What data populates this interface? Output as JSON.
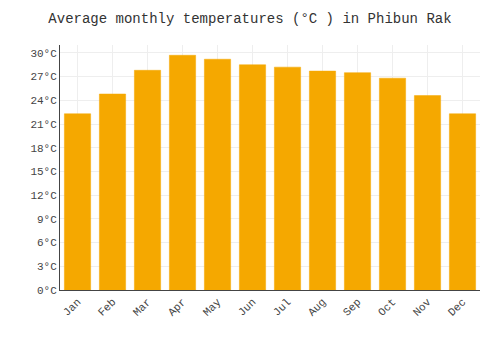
{
  "chart_data": {
    "type": "bar",
    "title": "Average monthly temperatures (°C ) in Phibun Rak",
    "categories": [
      "Jan",
      "Feb",
      "Mar",
      "Apr",
      "May",
      "Jun",
      "Jul",
      "Aug",
      "Sep",
      "Oct",
      "Nov",
      "Dec"
    ],
    "values": [
      22.3,
      24.8,
      27.8,
      29.7,
      29.2,
      28.5,
      28.2,
      27.7,
      27.5,
      26.8,
      24.6,
      22.3
    ],
    "color": "#F5A800",
    "ylim": [
      0,
      31
    ],
    "yticks": [
      {
        "value": 0,
        "label": "0°C"
      },
      {
        "value": 3,
        "label": "3°C"
      },
      {
        "value": 6,
        "label": "6°C"
      },
      {
        "value": 9,
        "label": "9°C"
      },
      {
        "value": 12,
        "label": "12°C"
      },
      {
        "value": 15,
        "label": "15°C"
      },
      {
        "value": 18,
        "label": "18°C"
      },
      {
        "value": 21,
        "label": "21°C"
      },
      {
        "value": 24,
        "label": "24°C"
      },
      {
        "value": 27,
        "label": "27°C"
      },
      {
        "value": 30,
        "label": "30°C"
      }
    ],
    "grid": true
  }
}
